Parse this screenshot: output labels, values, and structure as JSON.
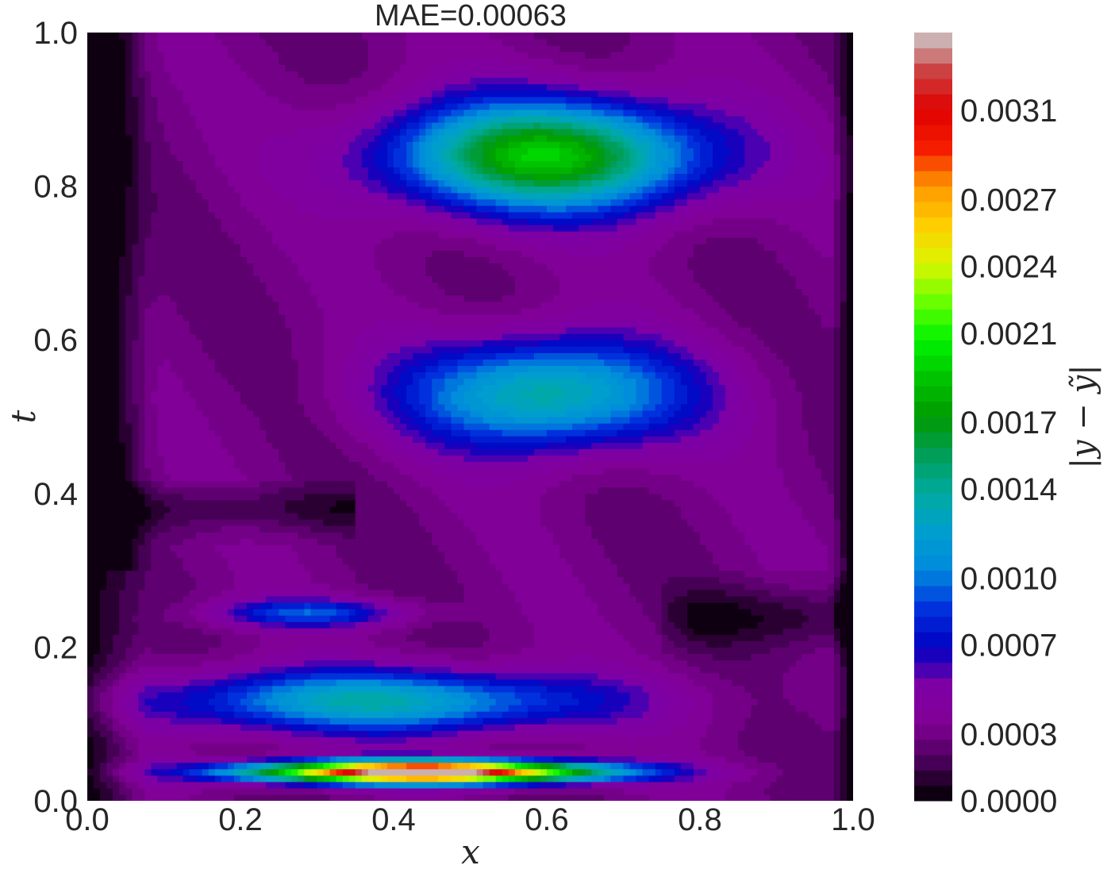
{
  "chart_data": {
    "type": "heatmap",
    "title": "MAE=0.00063",
    "xlabel": "x",
    "ylabel": "t",
    "xlim": [
      0.0,
      1.0
    ],
    "ylim": [
      0.0,
      1.0
    ],
    "xticks": [
      "0.0",
      "0.2",
      "0.4",
      "0.6",
      "0.8",
      "1.0"
    ],
    "yticks": [
      "0.0",
      "0.2",
      "0.4",
      "0.6",
      "0.8",
      "1.0"
    ],
    "colorbar": {
      "label": "|y − ỹ|",
      "range": [
        0.0,
        0.00345
      ],
      "ticks": [
        "0.0000",
        "0.0003",
        "0.0007",
        "0.0010",
        "0.0014",
        "0.0017",
        "0.0021",
        "0.0024",
        "0.0027",
        "0.0031"
      ],
      "colormap": "nipy_spectral"
    },
    "grid": false,
    "features": [
      {
        "x": 0.44,
        "t": 0.038,
        "sx": 0.22,
        "st": 0.014,
        "value": 0.0034,
        "desc": "peak error band near t=0.04"
      },
      {
        "x": 0.38,
        "t": 0.13,
        "sx": 0.28,
        "st": 0.04,
        "value": 0.001,
        "desc": "band t=0.1-0.17"
      },
      {
        "x": 0.29,
        "t": 0.245,
        "sx": 0.12,
        "st": 0.018,
        "value": 0.0006,
        "desc": "blob t=0.25"
      },
      {
        "x": 0.6,
        "t": 0.53,
        "sx": 0.18,
        "st": 0.07,
        "value": 0.0011,
        "desc": "mid region t=0.45-0.6"
      },
      {
        "x": 0.6,
        "t": 0.84,
        "sx": 0.2,
        "st": 0.07,
        "value": 0.0016,
        "desc": "upper region t=0.8-0.9"
      }
    ]
  }
}
